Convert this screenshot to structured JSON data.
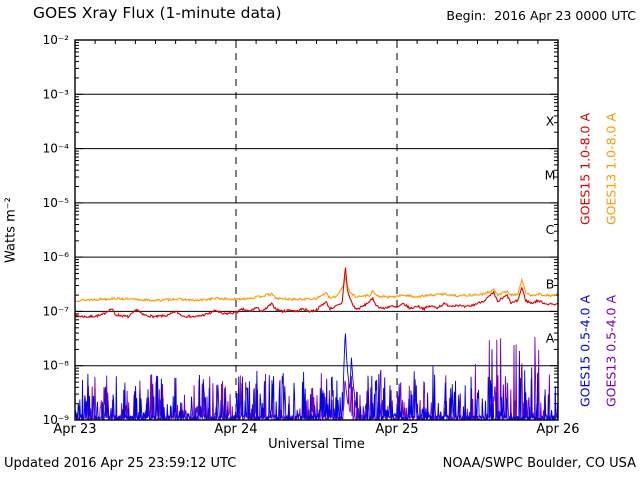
{
  "header": {
    "title": "GOES Xray Flux (1-minute data)",
    "begin": "Begin:  2016 Apr 23 0000 UTC"
  },
  "footer": {
    "updated": "Updated 2016 Apr 25 23:59:12 UTC",
    "source": "NOAA/SWPC Boulder, CO USA"
  },
  "chart_data": {
    "type": "line",
    "title": "GOES Xray Flux (1-minute data)",
    "xlabel": "Universal Time",
    "ylabel": "Watts m⁻²",
    "x_range_hours": [
      0,
      72
    ],
    "y_log10_range": [
      -9,
      -2
    ],
    "x_ticks": [
      {
        "hour": 0,
        "label": "Apr 23"
      },
      {
        "hour": 24,
        "label": "Apr 24"
      },
      {
        "hour": 48,
        "label": "Apr 25"
      },
      {
        "hour": 72,
        "label": "Apr 26"
      }
    ],
    "y_ticks": [
      {
        "exp": -2,
        "label": "10⁻²"
      },
      {
        "exp": -3,
        "label": "10⁻³"
      },
      {
        "exp": -4,
        "label": "10⁻⁴"
      },
      {
        "exp": -5,
        "label": "10⁻⁵"
      },
      {
        "exp": -6,
        "label": "10⁻⁶"
      },
      {
        "exp": -7,
        "label": "10⁻⁷"
      },
      {
        "exp": -8,
        "label": "10⁻⁸"
      },
      {
        "exp": -9,
        "label": "10⁻⁹"
      }
    ],
    "flare_classes": [
      {
        "label": "X",
        "log_center": -3.5
      },
      {
        "label": "M",
        "log_center": -4.5
      },
      {
        "label": "C",
        "log_center": -5.5
      },
      {
        "label": "B",
        "log_center": -6.5
      },
      {
        "label": "A",
        "log_center": -7.5
      }
    ],
    "grid": {
      "h_line_exps": [
        -3,
        -4,
        -5,
        -6,
        -7,
        -8
      ],
      "v_dashed_hours": [
        24,
        48
      ]
    },
    "series": [
      {
        "name": "GOES15 1.0-8.0 A",
        "color": "#dd0000",
        "kind": "smooth",
        "seed": 7,
        "jitter": 0.022,
        "points_t_log10flux": [
          [
            0,
            -7.08
          ],
          [
            2,
            -7.1
          ],
          [
            4,
            -7.07
          ],
          [
            5,
            -6.98
          ],
          [
            5.5,
            -6.95
          ],
          [
            6,
            -7.06
          ],
          [
            8,
            -7.1
          ],
          [
            9.3,
            -6.96
          ],
          [
            10,
            -7.06
          ],
          [
            12,
            -7.1
          ],
          [
            14,
            -7.07
          ],
          [
            15,
            -7.0
          ],
          [
            16,
            -7.08
          ],
          [
            18,
            -7.1
          ],
          [
            20,
            -7.04
          ],
          [
            21,
            -6.98
          ],
          [
            22,
            -7.05
          ],
          [
            24,
            -7.02
          ],
          [
            25,
            -6.96
          ],
          [
            26,
            -7.0
          ],
          [
            27,
            -6.93
          ],
          [
            28,
            -7.0
          ],
          [
            29.3,
            -6.86
          ],
          [
            30,
            -6.96
          ],
          [
            31,
            -7.0
          ],
          [
            32,
            -6.97
          ],
          [
            33,
            -7.0
          ],
          [
            34,
            -6.95
          ],
          [
            35,
            -7.0
          ],
          [
            36,
            -6.97
          ],
          [
            37.4,
            -6.82
          ],
          [
            38,
            -6.95
          ],
          [
            39,
            -6.9
          ],
          [
            39.8,
            -6.86
          ],
          [
            40.1,
            -6.45
          ],
          [
            40.3,
            -6.15
          ],
          [
            40.6,
            -6.62
          ],
          [
            41,
            -6.76
          ],
          [
            41.5,
            -6.9
          ],
          [
            42,
            -6.96
          ],
          [
            43,
            -6.9
          ],
          [
            44.4,
            -6.77
          ],
          [
            45,
            -6.9
          ],
          [
            46,
            -6.95
          ],
          [
            47,
            -6.9
          ],
          [
            48,
            -6.93
          ],
          [
            49,
            -6.86
          ],
          [
            50,
            -6.95
          ],
          [
            51,
            -6.9
          ],
          [
            52,
            -6.95
          ],
          [
            53,
            -6.9
          ],
          [
            54,
            -6.93
          ],
          [
            55,
            -6.86
          ],
          [
            56,
            -6.9
          ],
          [
            57,
            -6.88
          ],
          [
            58,
            -6.92
          ],
          [
            59,
            -6.9
          ],
          [
            60,
            -6.85
          ],
          [
            61,
            -6.8
          ],
          [
            62.4,
            -6.66
          ],
          [
            63,
            -6.82
          ],
          [
            64.4,
            -6.7
          ],
          [
            65,
            -6.85
          ],
          [
            66,
            -6.8
          ],
          [
            66.6,
            -6.56
          ],
          [
            67.2,
            -6.8
          ],
          [
            68,
            -6.85
          ],
          [
            69,
            -6.8
          ],
          [
            70,
            -6.85
          ],
          [
            71,
            -6.87
          ],
          [
            72,
            -6.86
          ]
        ]
      },
      {
        "name": "GOES13 1.0-8.0 A",
        "color": "#ff9a00",
        "kind": "smooth",
        "seed": 13,
        "jitter": 0.02,
        "points_t_log10flux": [
          [
            0,
            -6.8
          ],
          [
            3,
            -6.78
          ],
          [
            6,
            -6.76
          ],
          [
            9,
            -6.78
          ],
          [
            12,
            -6.8
          ],
          [
            15,
            -6.77
          ],
          [
            18,
            -6.8
          ],
          [
            21,
            -6.76
          ],
          [
            24,
            -6.78
          ],
          [
            27,
            -6.74
          ],
          [
            29.3,
            -6.68
          ],
          [
            30,
            -6.76
          ],
          [
            33,
            -6.78
          ],
          [
            36,
            -6.76
          ],
          [
            37.4,
            -6.66
          ],
          [
            38,
            -6.76
          ],
          [
            39,
            -6.72
          ],
          [
            40.1,
            -6.5
          ],
          [
            40.3,
            -6.35
          ],
          [
            40.7,
            -6.56
          ],
          [
            41,
            -6.66
          ],
          [
            42,
            -6.73
          ],
          [
            44,
            -6.7
          ],
          [
            44.4,
            -6.62
          ],
          [
            45,
            -6.72
          ],
          [
            47,
            -6.74
          ],
          [
            49,
            -6.7
          ],
          [
            51,
            -6.73
          ],
          [
            53,
            -6.7
          ],
          [
            55,
            -6.68
          ],
          [
            57,
            -6.71
          ],
          [
            59,
            -6.7
          ],
          [
            61,
            -6.68
          ],
          [
            62.4,
            -6.6
          ],
          [
            63,
            -6.7
          ],
          [
            64.4,
            -6.63
          ],
          [
            65,
            -6.7
          ],
          [
            66,
            -6.68
          ],
          [
            66.6,
            -6.42
          ],
          [
            67.2,
            -6.66
          ],
          [
            68,
            -6.7
          ],
          [
            69,
            -6.68
          ],
          [
            70,
            -6.7
          ],
          [
            71,
            -6.71
          ],
          [
            72,
            -6.68
          ]
        ]
      },
      {
        "name": "GOES15 0.5-4.0 A",
        "color": "#0000e6",
        "kind": "spiky",
        "seed": 21,
        "baseline_log10": -8.97,
        "spike_prob": 0.42,
        "spike_range": 0.85,
        "bursts": [
          {
            "t0": 62,
            "t1": 70,
            "extra": 0.6
          },
          {
            "t0": 53,
            "t1": 58,
            "extra": 0.2
          }
        ],
        "flare_envelope_t_log10flux": [
          [
            39.9,
            -8.95
          ],
          [
            40.05,
            -8.1
          ],
          [
            40.3,
            -7.35
          ],
          [
            40.5,
            -7.9
          ],
          [
            40.75,
            -8.25
          ],
          [
            41.0,
            -8.45
          ],
          [
            41.2,
            -7.85
          ],
          [
            41.45,
            -8.3
          ],
          [
            41.8,
            -8.7
          ],
          [
            42.2,
            -8.95
          ]
        ]
      },
      {
        "name": "GOES13 0.5-4.0 A",
        "color": "#7700bb",
        "kind": "spiky",
        "seed": 29,
        "baseline_log10": -8.97,
        "spike_prob": 0.42,
        "spike_range": 0.8,
        "bursts": [
          {
            "t0": 59,
            "t1": 70,
            "extra": 0.7
          },
          {
            "t0": 44,
            "t1": 46,
            "extra": 0.25
          }
        ],
        "flare_envelope_t_log10flux": [
          [
            40.0,
            -8.95
          ],
          [
            40.25,
            -8.25
          ],
          [
            40.6,
            -8.65
          ],
          [
            41.0,
            -8.85
          ],
          [
            41.4,
            -8.95
          ]
        ]
      }
    ]
  }
}
